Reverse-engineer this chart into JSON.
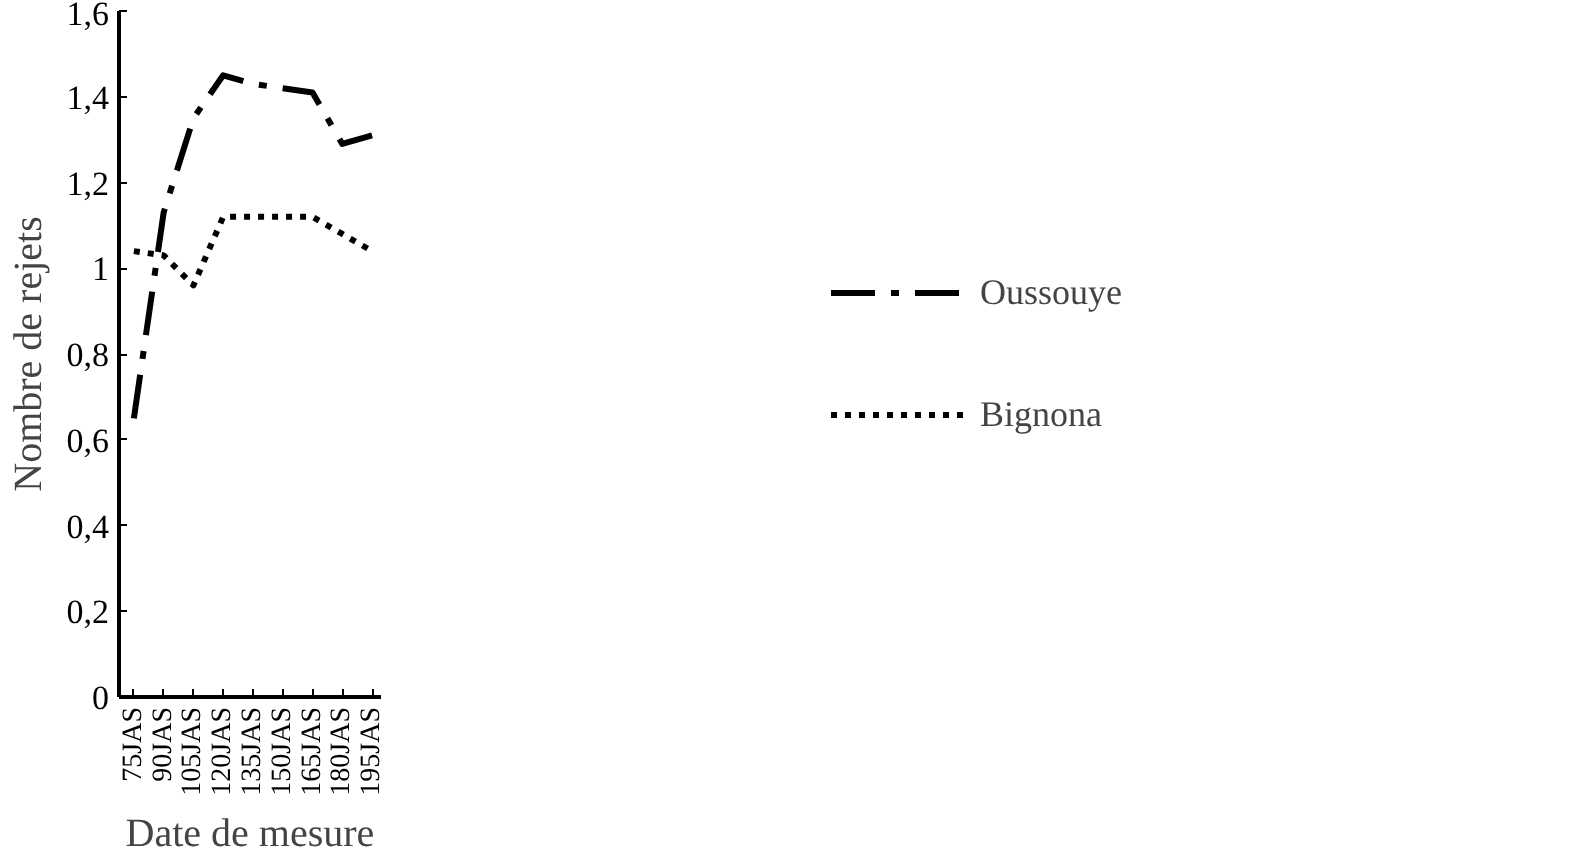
{
  "chart_data": {
    "type": "line",
    "xlabel": "Date de mesure",
    "ylabel": "Nombre de rejets",
    "categories": [
      "75JAS",
      "90JAS",
      "105JAS",
      "120JAS",
      "135JAS",
      "150JAS",
      "165JAS",
      "180JAS",
      "195JAS"
    ],
    "series": [
      {
        "name": "Oussouye",
        "color": "#000000",
        "line_style": "dashed",
        "values": [
          0.65,
          1.13,
          1.35,
          1.45,
          1.43,
          1.42,
          1.41,
          1.29,
          1.31
        ]
      },
      {
        "name": "Bignona",
        "color": "#000000",
        "line_style": "dotted",
        "values": [
          1.04,
          1.03,
          0.96,
          1.12,
          1.12,
          1.12,
          1.12,
          1.08,
          1.04
        ]
      }
    ],
    "ylim": [
      0,
      1.6
    ],
    "yticks": [
      0,
      {
        "value": 0.2,
        "label": "0,2"
      },
      {
        "value": 0.4,
        "label": "0,4"
      },
      {
        "value": 0.6,
        "label": "0,6"
      },
      {
        "value": 0.8,
        "label": "0,8"
      },
      1,
      {
        "value": 1.2,
        "label": "1,2"
      },
      {
        "value": 1.4,
        "label": "1,4"
      },
      {
        "value": 1.6,
        "label": "1,6"
      }
    ],
    "grid": false,
    "legend": "right",
    "marker": "none"
  }
}
